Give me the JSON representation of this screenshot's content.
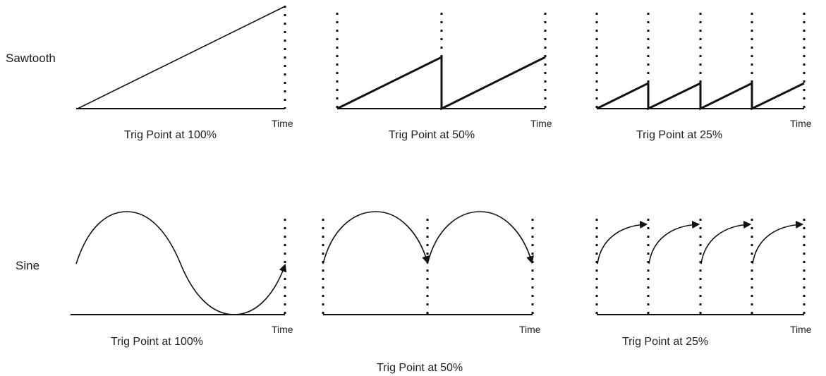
{
  "rows": [
    {
      "label": "Sawtooth",
      "waveform": "sawtooth"
    },
    {
      "label": "Sine",
      "waveform": "sine"
    }
  ],
  "panels": [
    {
      "row": "sawtooth",
      "caption": "Trig Point at 100%",
      "axis_label": "Time",
      "trig_percent": 100
    },
    {
      "row": "sawtooth",
      "caption": "Trig Point at 50%",
      "axis_label": "Time",
      "trig_percent": 50
    },
    {
      "row": "sawtooth",
      "caption": "Trig Point at 25%",
      "axis_label": "Time",
      "trig_percent": 25
    },
    {
      "row": "sine",
      "caption": "Trig Point at 100%",
      "axis_label": "Time",
      "trig_percent": 100
    },
    {
      "row": "sine",
      "caption": "Trig Point at 50%",
      "axis_label": "Time",
      "trig_percent": 50
    },
    {
      "row": "sine",
      "caption": "Trig Point at 25%",
      "axis_label": "Time",
      "trig_percent": 25
    }
  ]
}
